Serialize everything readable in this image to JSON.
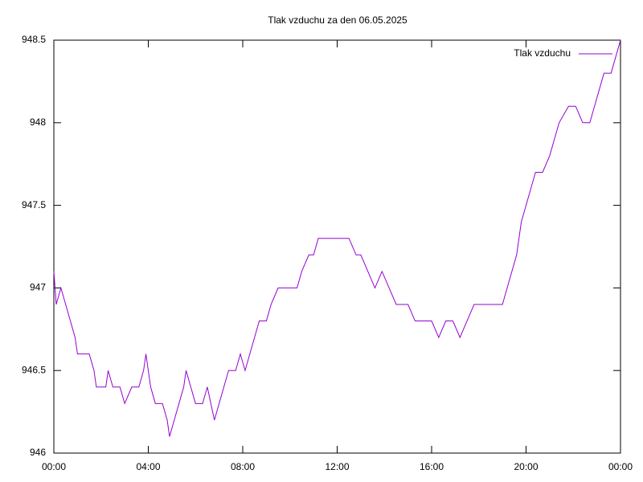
{
  "chart_data": {
    "type": "line",
    "title": "Tlak vzduchu za den 06.05.2025",
    "x": [
      0,
      0.1,
      0.3,
      0.5,
      0.7,
      0.9,
      1.0,
      1.5,
      1.7,
      1.8,
      2.2,
      2.3,
      2.5,
      2.8,
      3.0,
      3.3,
      3.6,
      3.8,
      3.9,
      4.1,
      4.3,
      4.6,
      4.8,
      4.9,
      5.1,
      5.3,
      5.5,
      5.6,
      5.8,
      6.0,
      6.3,
      6.5,
      6.8,
      7.0,
      7.2,
      7.4,
      7.7,
      7.9,
      8.1,
      8.3,
      8.5,
      8.7,
      9.0,
      9.2,
      9.5,
      9.8,
      10.0,
      10.3,
      10.5,
      10.8,
      11.0,
      11.2,
      11.4,
      11.7,
      12.0,
      12.2,
      12.5,
      12.8,
      13.0,
      13.3,
      13.6,
      13.9,
      14.2,
      14.5,
      14.8,
      15.0,
      15.3,
      15.6,
      16.0,
      16.3,
      16.6,
      16.9,
      17.2,
      17.5,
      17.8,
      18.1,
      18.4,
      18.7,
      19.0,
      19.2,
      19.4,
      19.6,
      19.8,
      20.0,
      20.2,
      20.4,
      20.7,
      21.0,
      21.2,
      21.4,
      21.8,
      22.1,
      22.4,
      22.7,
      22.9,
      23.1,
      23.3,
      23.6,
      23.8,
      24.0
    ],
    "series": [
      {
        "name": "Tlak vzduchu",
        "color": "#9400d3",
        "values": [
          947.1,
          946.9,
          947.0,
          946.9,
          946.8,
          946.7,
          946.6,
          946.6,
          946.5,
          946.4,
          946.4,
          946.5,
          946.4,
          946.4,
          946.3,
          946.4,
          946.4,
          946.5,
          946.6,
          946.4,
          946.3,
          946.3,
          946.2,
          946.1,
          946.2,
          946.3,
          946.4,
          946.5,
          946.4,
          946.3,
          946.3,
          946.4,
          946.2,
          946.3,
          946.4,
          946.5,
          946.5,
          946.6,
          946.5,
          946.6,
          946.7,
          946.8,
          946.8,
          946.9,
          947.0,
          947.0,
          947.0,
          947.0,
          947.1,
          947.2,
          947.2,
          947.3,
          947.3,
          947.3,
          947.3,
          947.3,
          947.3,
          947.2,
          947.2,
          947.1,
          947.0,
          947.1,
          947.0,
          946.9,
          946.9,
          946.9,
          946.8,
          946.8,
          946.8,
          946.7,
          946.8,
          946.8,
          946.7,
          946.8,
          946.9,
          946.9,
          946.9,
          946.9,
          946.9,
          947.0,
          947.1,
          947.2,
          947.4,
          947.5,
          947.6,
          947.7,
          947.7,
          947.8,
          947.9,
          948.0,
          948.1,
          948.1,
          948.0,
          948.0,
          948.1,
          948.2,
          948.3,
          948.3,
          948.4,
          948.5
        ]
      }
    ],
    "xlim": [
      0,
      24
    ],
    "xticks": [
      {
        "value": 0,
        "label": "00:00"
      },
      {
        "value": 4,
        "label": "04:00"
      },
      {
        "value": 8,
        "label": "08:00"
      },
      {
        "value": 12,
        "label": "12:00"
      },
      {
        "value": 16,
        "label": "16:00"
      },
      {
        "value": 20,
        "label": "20:00"
      },
      {
        "value": 24,
        "label": "00:00"
      }
    ],
    "ylim": [
      946,
      948.5
    ],
    "yticks": [
      946,
      946.5,
      947,
      947.5,
      948,
      948.5
    ],
    "legend": "top-right",
    "grid": false
  }
}
